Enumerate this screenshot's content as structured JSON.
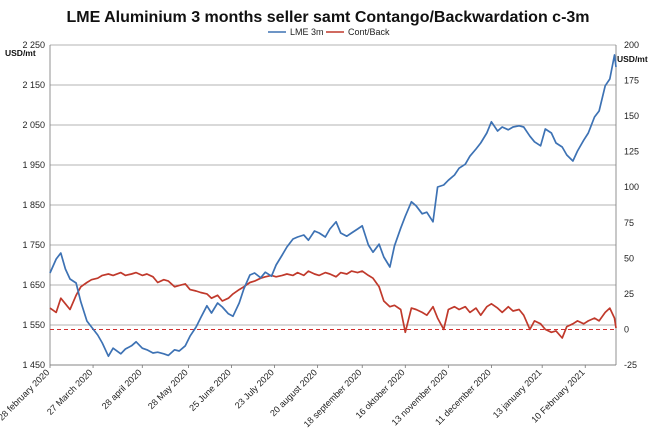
{
  "chart_data": {
    "type": "line",
    "title": "LME Aluminium 3 months seller samt Contango/Backwardation c-3m",
    "y_left_label": "USD/mt",
    "y_right_label": "USD/mt",
    "y_left_lim": [
      1450,
      2250
    ],
    "y_left_ticks": [
      "1 450",
      "1 550",
      "1 650",
      "1 750",
      "1 850",
      "1 950",
      "2 050",
      "2 150",
      "2 250"
    ],
    "y_left_tick_values": [
      1450,
      1550,
      1650,
      1750,
      1850,
      1950,
      2050,
      2150,
      2250
    ],
    "y_right_lim": [
      -25,
      200
    ],
    "y_right_ticks": [
      "-25",
      "0",
      "25",
      "50",
      "75",
      "100",
      "125",
      "150",
      "175",
      "200"
    ],
    "y_right_tick_values": [
      -25,
      0,
      25,
      50,
      75,
      100,
      125,
      150,
      175,
      200
    ],
    "x_lim": [
      "2020-02-28",
      "2021-03-02"
    ],
    "x_tick_labels": [
      "28 february 2020",
      "27 March 2020",
      "28 april 2020",
      "28 May 2020",
      "25 June 2020",
      "23 July 2020",
      "20 august 2020",
      "18 september 2020",
      "16 oktober 2020",
      "13 november 2020",
      "11 december 2020",
      "13 january 2021",
      "10 February 2021"
    ],
    "x_tick_dates": [
      "2020-02-28",
      "2020-03-27",
      "2020-04-28",
      "2020-05-28",
      "2020-06-25",
      "2020-07-23",
      "2020-08-20",
      "2020-09-18",
      "2020-10-16",
      "2020-11-13",
      "2020-12-11",
      "2021-01-13",
      "2021-02-10"
    ],
    "grid": "horizontal",
    "legend_position": "top-center",
    "reference_line": {
      "axis": "right",
      "value": 0,
      "style": "dashed",
      "color": "#d03030"
    },
    "series": [
      {
        "name": "LME 3m",
        "axis": "left",
        "color": "#3d72b4",
        "points": [
          [
            "2020-02-28",
            1680
          ],
          [
            "2020-03-03",
            1715
          ],
          [
            "2020-03-06",
            1730
          ],
          [
            "2020-03-09",
            1690
          ],
          [
            "2020-03-12",
            1665
          ],
          [
            "2020-03-16",
            1655
          ],
          [
            "2020-03-19",
            1608
          ],
          [
            "2020-03-23",
            1560
          ],
          [
            "2020-03-26",
            1545
          ],
          [
            "2020-03-30",
            1525
          ],
          [
            "2020-04-02",
            1505
          ],
          [
            "2020-04-06",
            1472
          ],
          [
            "2020-04-09",
            1492
          ],
          [
            "2020-04-14",
            1478
          ],
          [
            "2020-04-17",
            1490
          ],
          [
            "2020-04-21",
            1498
          ],
          [
            "2020-04-24",
            1508
          ],
          [
            "2020-04-28",
            1492
          ],
          [
            "2020-05-01",
            1488
          ],
          [
            "2020-05-05",
            1480
          ],
          [
            "2020-05-08",
            1482
          ],
          [
            "2020-05-12",
            1478
          ],
          [
            "2020-05-15",
            1474
          ],
          [
            "2020-05-19",
            1488
          ],
          [
            "2020-05-22",
            1485
          ],
          [
            "2020-05-26",
            1498
          ],
          [
            "2020-05-29",
            1522
          ],
          [
            "2020-06-02",
            1545
          ],
          [
            "2020-06-05",
            1568
          ],
          [
            "2020-06-09",
            1598
          ],
          [
            "2020-06-12",
            1580
          ],
          [
            "2020-06-16",
            1605
          ],
          [
            "2020-06-19",
            1595
          ],
          [
            "2020-06-23",
            1578
          ],
          [
            "2020-06-26",
            1572
          ],
          [
            "2020-06-30",
            1605
          ],
          [
            "2020-07-03",
            1640
          ],
          [
            "2020-07-07",
            1675
          ],
          [
            "2020-07-10",
            1680
          ],
          [
            "2020-07-14",
            1668
          ],
          [
            "2020-07-17",
            1682
          ],
          [
            "2020-07-21",
            1672
          ],
          [
            "2020-07-24",
            1700
          ],
          [
            "2020-07-28",
            1725
          ],
          [
            "2020-07-31",
            1745
          ],
          [
            "2020-08-04",
            1765
          ],
          [
            "2020-08-07",
            1770
          ],
          [
            "2020-08-11",
            1775
          ],
          [
            "2020-08-14",
            1762
          ],
          [
            "2020-08-18",
            1785
          ],
          [
            "2020-08-21",
            1780
          ],
          [
            "2020-08-25",
            1770
          ],
          [
            "2020-08-28",
            1790
          ],
          [
            "2020-09-01",
            1808
          ],
          [
            "2020-09-04",
            1780
          ],
          [
            "2020-09-08",
            1772
          ],
          [
            "2020-09-11",
            1780
          ],
          [
            "2020-09-15",
            1790
          ],
          [
            "2020-09-18",
            1798
          ],
          [
            "2020-09-22",
            1750
          ],
          [
            "2020-09-25",
            1732
          ],
          [
            "2020-09-29",
            1752
          ],
          [
            "2020-10-02",
            1720
          ],
          [
            "2020-10-06",
            1695
          ],
          [
            "2020-10-09",
            1748
          ],
          [
            "2020-10-13",
            1792
          ],
          [
            "2020-10-16",
            1822
          ],
          [
            "2020-10-20",
            1858
          ],
          [
            "2020-10-23",
            1848
          ],
          [
            "2020-10-27",
            1828
          ],
          [
            "2020-10-30",
            1832
          ],
          [
            "2020-11-03",
            1808
          ],
          [
            "2020-11-06",
            1895
          ],
          [
            "2020-11-10",
            1900
          ],
          [
            "2020-11-13",
            1912
          ],
          [
            "2020-11-17",
            1925
          ],
          [
            "2020-11-20",
            1942
          ],
          [
            "2020-11-24",
            1952
          ],
          [
            "2020-11-27",
            1972
          ],
          [
            "2020-12-01",
            1990
          ],
          [
            "2020-12-04",
            2005
          ],
          [
            "2020-12-08",
            2030
          ],
          [
            "2020-12-11",
            2058
          ],
          [
            "2020-12-15",
            2035
          ],
          [
            "2020-12-18",
            2045
          ],
          [
            "2020-12-22",
            2038
          ],
          [
            "2020-12-25",
            2045
          ],
          [
            "2020-12-29",
            2048
          ],
          [
            "2021-01-01",
            2045
          ],
          [
            "2021-01-05",
            2022
          ],
          [
            "2021-01-08",
            2008
          ],
          [
            "2021-01-12",
            1998
          ],
          [
            "2021-01-15",
            2040
          ],
          [
            "2021-01-19",
            2030
          ],
          [
            "2021-01-22",
            2005
          ],
          [
            "2021-01-26",
            1995
          ],
          [
            "2021-01-29",
            1975
          ],
          [
            "2021-02-02",
            1960
          ],
          [
            "2021-02-05",
            1985
          ],
          [
            "2021-02-09",
            2012
          ],
          [
            "2021-02-12",
            2030
          ],
          [
            "2021-02-16",
            2070
          ],
          [
            "2021-02-19",
            2085
          ],
          [
            "2021-02-23",
            2148
          ],
          [
            "2021-02-26",
            2165
          ],
          [
            "2021-03-01",
            2225
          ],
          [
            "2021-03-02",
            2195
          ]
        ]
      },
      {
        "name": "Cont/Back",
        "axis": "right",
        "color": "#c0392b",
        "points": [
          [
            "2020-02-28",
            15
          ],
          [
            "2020-03-03",
            12
          ],
          [
            "2020-03-06",
            22
          ],
          [
            "2020-03-09",
            18
          ],
          [
            "2020-03-12",
            14
          ],
          [
            "2020-03-16",
            24
          ],
          [
            "2020-03-19",
            30
          ],
          [
            "2020-03-23",
            33
          ],
          [
            "2020-03-26",
            35
          ],
          [
            "2020-03-30",
            36
          ],
          [
            "2020-04-02",
            38
          ],
          [
            "2020-04-06",
            39
          ],
          [
            "2020-04-09",
            38
          ],
          [
            "2020-04-14",
            40
          ],
          [
            "2020-04-17",
            38
          ],
          [
            "2020-04-21",
            39
          ],
          [
            "2020-04-24",
            40
          ],
          [
            "2020-04-28",
            38
          ],
          [
            "2020-05-01",
            39
          ],
          [
            "2020-05-05",
            37
          ],
          [
            "2020-05-08",
            33
          ],
          [
            "2020-05-12",
            35
          ],
          [
            "2020-05-15",
            34
          ],
          [
            "2020-05-19",
            30
          ],
          [
            "2020-05-22",
            31
          ],
          [
            "2020-05-26",
            32
          ],
          [
            "2020-05-29",
            28
          ],
          [
            "2020-06-02",
            27
          ],
          [
            "2020-06-05",
            26
          ],
          [
            "2020-06-09",
            25
          ],
          [
            "2020-06-12",
            22
          ],
          [
            "2020-06-16",
            24
          ],
          [
            "2020-06-19",
            20
          ],
          [
            "2020-06-23",
            22
          ],
          [
            "2020-06-26",
            25
          ],
          [
            "2020-06-30",
            28
          ],
          [
            "2020-07-03",
            30
          ],
          [
            "2020-07-07",
            33
          ],
          [
            "2020-07-10",
            34
          ],
          [
            "2020-07-14",
            36
          ],
          [
            "2020-07-17",
            37
          ],
          [
            "2020-07-21",
            38
          ],
          [
            "2020-07-24",
            37
          ],
          [
            "2020-07-28",
            38
          ],
          [
            "2020-07-31",
            39
          ],
          [
            "2020-08-04",
            38
          ],
          [
            "2020-08-07",
            40
          ],
          [
            "2020-08-11",
            38
          ],
          [
            "2020-08-14",
            41
          ],
          [
            "2020-08-18",
            39
          ],
          [
            "2020-08-21",
            38
          ],
          [
            "2020-08-25",
            40
          ],
          [
            "2020-08-28",
            39
          ],
          [
            "2020-09-01",
            37
          ],
          [
            "2020-09-04",
            40
          ],
          [
            "2020-09-08",
            39
          ],
          [
            "2020-09-11",
            41
          ],
          [
            "2020-09-15",
            40
          ],
          [
            "2020-09-18",
            41
          ],
          [
            "2020-09-22",
            38
          ],
          [
            "2020-09-25",
            36
          ],
          [
            "2020-09-29",
            30
          ],
          [
            "2020-10-02",
            20
          ],
          [
            "2020-10-06",
            16
          ],
          [
            "2020-10-09",
            17
          ],
          [
            "2020-10-13",
            14
          ],
          [
            "2020-10-16",
            -2
          ],
          [
            "2020-10-20",
            15
          ],
          [
            "2020-10-23",
            14
          ],
          [
            "2020-10-27",
            12
          ],
          [
            "2020-10-30",
            10
          ],
          [
            "2020-11-03",
            16
          ],
          [
            "2020-11-06",
            8
          ],
          [
            "2020-11-10",
            0
          ],
          [
            "2020-11-13",
            14
          ],
          [
            "2020-11-17",
            16
          ],
          [
            "2020-11-20",
            14
          ],
          [
            "2020-11-24",
            16
          ],
          [
            "2020-11-27",
            12
          ],
          [
            "2020-12-01",
            15
          ],
          [
            "2020-12-04",
            10
          ],
          [
            "2020-12-08",
            16
          ],
          [
            "2020-12-11",
            18
          ],
          [
            "2020-12-15",
            15
          ],
          [
            "2020-12-18",
            12
          ],
          [
            "2020-12-22",
            16
          ],
          [
            "2020-12-25",
            13
          ],
          [
            "2020-12-29",
            14
          ],
          [
            "2021-01-01",
            10
          ],
          [
            "2021-01-05",
            0
          ],
          [
            "2021-01-08",
            6
          ],
          [
            "2021-01-12",
            4
          ],
          [
            "2021-01-15",
            0
          ],
          [
            "2021-01-19",
            -2
          ],
          [
            "2021-01-22",
            -1
          ],
          [
            "2021-01-26",
            -6
          ],
          [
            "2021-01-29",
            2
          ],
          [
            "2021-02-02",
            4
          ],
          [
            "2021-02-05",
            6
          ],
          [
            "2021-02-09",
            4
          ],
          [
            "2021-02-12",
            6
          ],
          [
            "2021-02-16",
            8
          ],
          [
            "2021-02-19",
            6
          ],
          [
            "2021-02-23",
            12
          ],
          [
            "2021-02-26",
            15
          ],
          [
            "2021-03-01",
            8
          ],
          [
            "2021-03-02",
            1
          ]
        ]
      }
    ]
  }
}
